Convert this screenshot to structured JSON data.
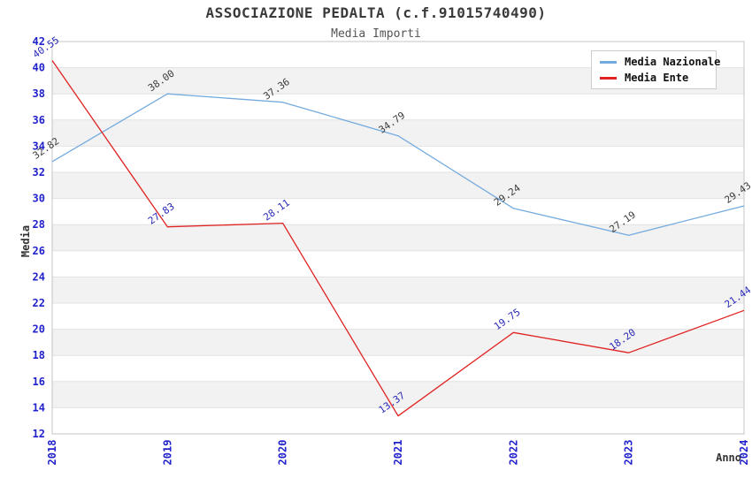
{
  "chart_data": {
    "type": "line",
    "title": "ASSOCIAZIONE PEDALTA (c.f.91015740490)",
    "subtitle": "Media Importi",
    "xlabel": "Anno",
    "ylabel": "Media",
    "x": [
      2018,
      2019,
      2020,
      2021,
      2022,
      2023,
      2024
    ],
    "series": [
      {
        "name": "Media Nazionale",
        "color": "#74abdf",
        "label_color": "#3c3c3c",
        "values": [
          32.82,
          38.0,
          37.36,
          34.79,
          29.24,
          27.19,
          29.43
        ]
      },
      {
        "name": "Media Ente",
        "color": "#e02222",
        "label_color": "#2929b8",
        "values": [
          40.55,
          27.83,
          28.11,
          13.37,
          19.75,
          18.2,
          21.44
        ]
      }
    ],
    "ylim": [
      12,
      42
    ],
    "ytick_step": 2,
    "yticks": [
      12,
      14,
      16,
      18,
      20,
      22,
      24,
      26,
      28,
      30,
      32,
      34,
      36,
      38,
      40,
      42
    ],
    "grid": "horizontal alternating bands, gray band between odd tick pairs (38-40, 34-36, 30-32, 26-28, 22-24, 18-20, 14-16)",
    "legend_position": "top-right",
    "colors": {
      "tick_label": "#2222cc",
      "band_gray": "#f2f2f2",
      "gridline": "#e2e2e2",
      "plot_border": "#c4c4c4",
      "axis_title": "#333333",
      "title_text": "#3a3a3a",
      "subtitle_text": "#555555"
    }
  }
}
